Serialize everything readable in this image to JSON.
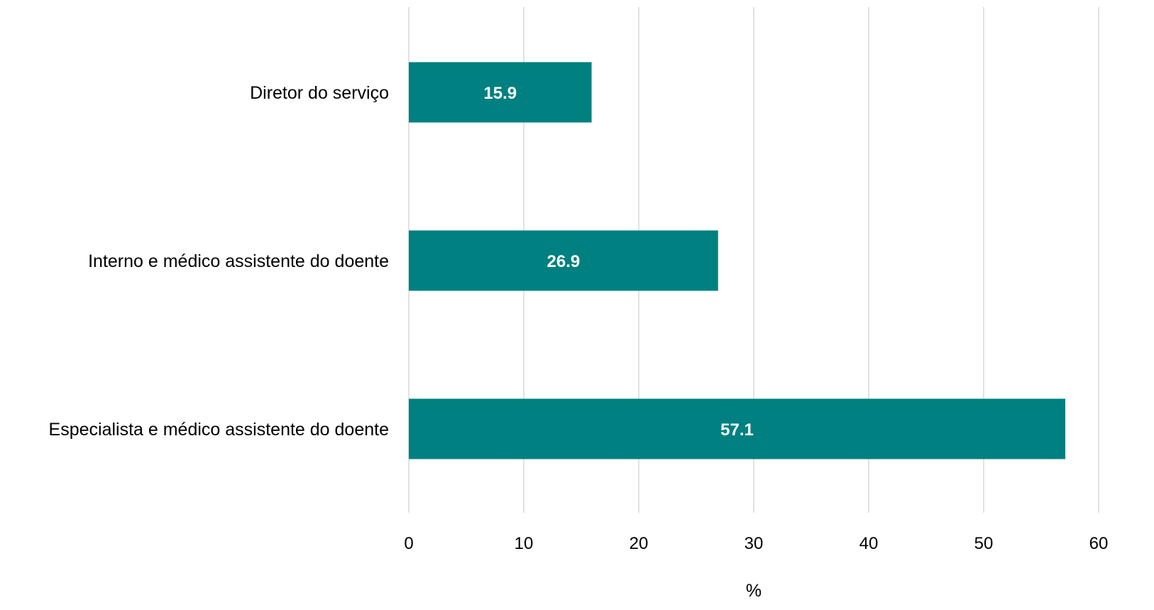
{
  "chart_data": {
    "type": "bar",
    "orientation": "horizontal",
    "categories": [
      "Diretor do serviço",
      "Interno e médico assistente do doente",
      "Especialista e médico assistente do doente"
    ],
    "values": [
      15.9,
      26.9,
      57.1
    ],
    "data_labels": [
      "15.9",
      "26.9",
      "57.1"
    ],
    "xlabel": "%",
    "ylabel": "",
    "xlim": [
      0,
      60
    ],
    "x_ticks": [
      0,
      10,
      20,
      30,
      40,
      50,
      60
    ],
    "grid": "vertical",
    "legend": "none",
    "bar_color": "#008080",
    "label_color": "#ffffff"
  }
}
